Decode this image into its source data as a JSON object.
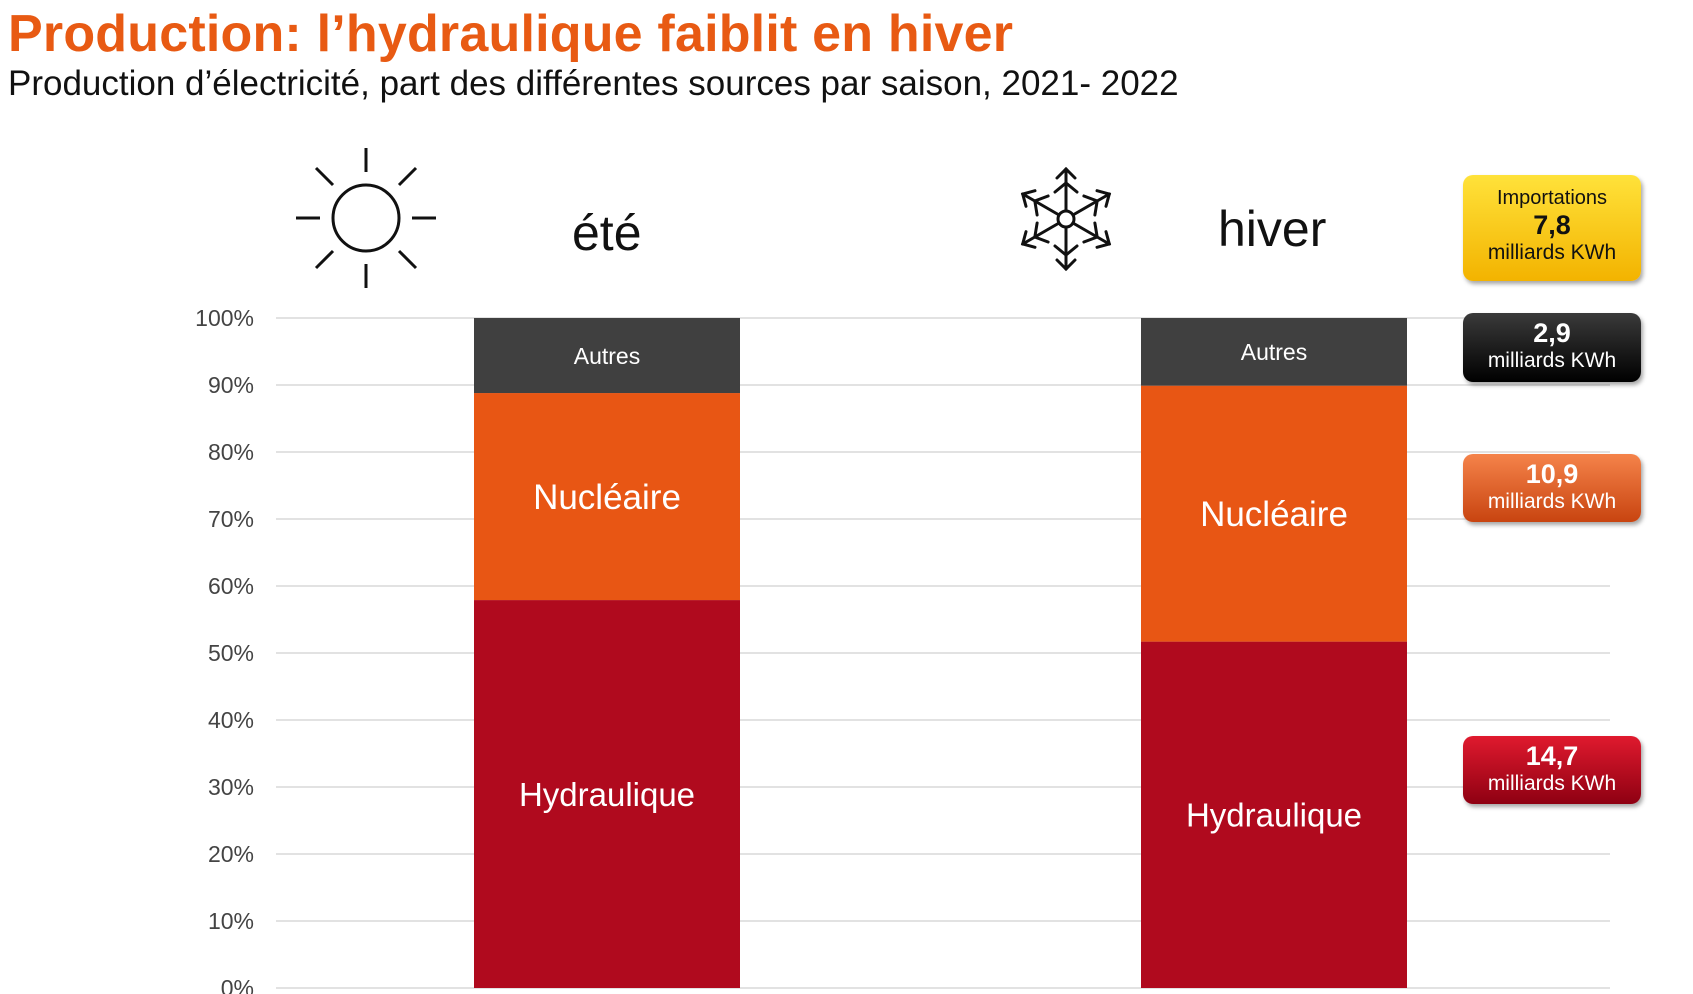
{
  "title": "Production: l’hydraulique faiblit en hiver",
  "subtitle": "Production d’électricité, part des différentes sources par saison, 2021- 2022",
  "seasons": [
    {
      "label": "été",
      "icon": "sun-icon"
    },
    {
      "label": "hiver",
      "icon": "snowflake-icon"
    }
  ],
  "colors": {
    "hydraulique": "#b00a1e",
    "nucleaire": "#e85614",
    "autres": "#404040",
    "title": "#e85a13",
    "grid": "#d9d9d9"
  },
  "chart_data": {
    "type": "bar",
    "stacked": true,
    "categories": [
      "été",
      "hiver"
    ],
    "series": [
      {
        "name": "Hydraulique",
        "values": [
          57.9,
          51.7
        ]
      },
      {
        "name": "Nucléaire",
        "values": [
          30.9,
          38.2
        ]
      },
      {
        "name": "Autres",
        "values": [
          11.2,
          10.1
        ]
      }
    ],
    "ylim": [
      0,
      100
    ],
    "yticks": [
      "0%",
      "10%",
      "20%",
      "30%",
      "40%",
      "50%",
      "60%",
      "70%",
      "80%",
      "90%",
      "100%"
    ],
    "grid": true,
    "legend": "none"
  },
  "callouts": {
    "imports": {
      "label": "Importations",
      "value": "7,8",
      "unit": "milliards KWh"
    },
    "autres": {
      "value": "2,9",
      "unit": "milliards KWh"
    },
    "nucleaire": {
      "value": "10,9",
      "unit": "milliards KWh"
    },
    "hydraulique": {
      "value": "14,7",
      "unit": "milliards KWh"
    }
  }
}
